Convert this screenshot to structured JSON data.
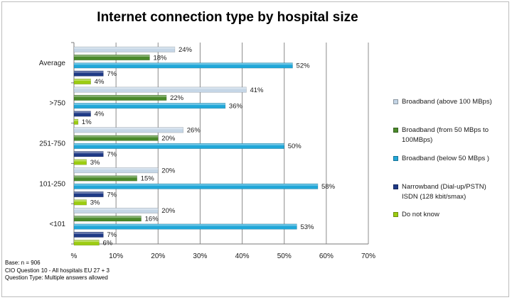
{
  "chart_data": {
    "type": "bar",
    "orientation": "horizontal",
    "title": "Internet connection type by hospital size",
    "categories": [
      "Average",
      ">750",
      "251-750",
      "101-250",
      "<101"
    ],
    "series": [
      {
        "name": "Broadband (above 100 MBps)",
        "color": "#c5d6e6",
        "values": [
          24,
          41,
          26,
          20,
          20
        ],
        "labels": [
          "24%",
          "41%",
          "26%",
          "20%",
          "20%"
        ]
      },
      {
        "name": "Broadband (from 50 MBps to 100MBps)",
        "color": "#4b8a2b",
        "values": [
          18,
          22,
          20,
          15,
          16
        ],
        "labels": [
          "18%",
          "22%",
          "20%",
          "15%",
          "16%"
        ]
      },
      {
        "name": "Broadband (below 50 MBps )",
        "color": "#21a7d8",
        "values": [
          52,
          36,
          50,
          58,
          53
        ],
        "labels": [
          "52%",
          "36%",
          "50%",
          "58%",
          "53%"
        ]
      },
      {
        "name": "Narrowband (Dial-up/PSTN) ISDN (128 kbit/smax)",
        "color": "#1f3a86",
        "values": [
          7,
          4,
          7,
          7,
          7
        ],
        "labels": [
          "7%",
          "4%",
          "7%",
          "7%",
          "7%"
        ]
      },
      {
        "name": "Do not know",
        "color": "#9ccc12",
        "values": [
          4,
          1,
          3,
          3,
          6
        ],
        "labels": [
          "4%",
          "1%",
          "3%",
          "3%",
          "6%"
        ]
      }
    ],
    "xlim": [
      0,
      70
    ],
    "x_ticks": [
      0,
      10,
      20,
      30,
      40,
      50,
      60,
      70
    ],
    "x_tick_labels": [
      "%",
      "10%",
      "20%",
      "30%",
      "40%",
      "50%",
      "60%",
      "70%"
    ],
    "grid": true,
    "legend_position": "right"
  },
  "legend": [
    {
      "lines": [
        "Broadband (above 100 MBps)"
      ]
    },
    {
      "lines": [
        "Broadband (from 50 MBps to",
        "100MBps)"
      ]
    },
    {
      "lines": [
        "Broadband (below 50 MBps )"
      ]
    },
    {
      "lines": [
        "Narrowband (Dial-up/PSTN)",
        "ISDN (128 kbit/smax)"
      ]
    },
    {
      "lines": [
        "Do not know"
      ]
    }
  ],
  "footnote": {
    "line1": "Base: n = 906",
    "line2": "CIO Question 10 - All hospitals EU 27 + 3",
    "line3": "Question Type: Multiple answers allowed"
  }
}
